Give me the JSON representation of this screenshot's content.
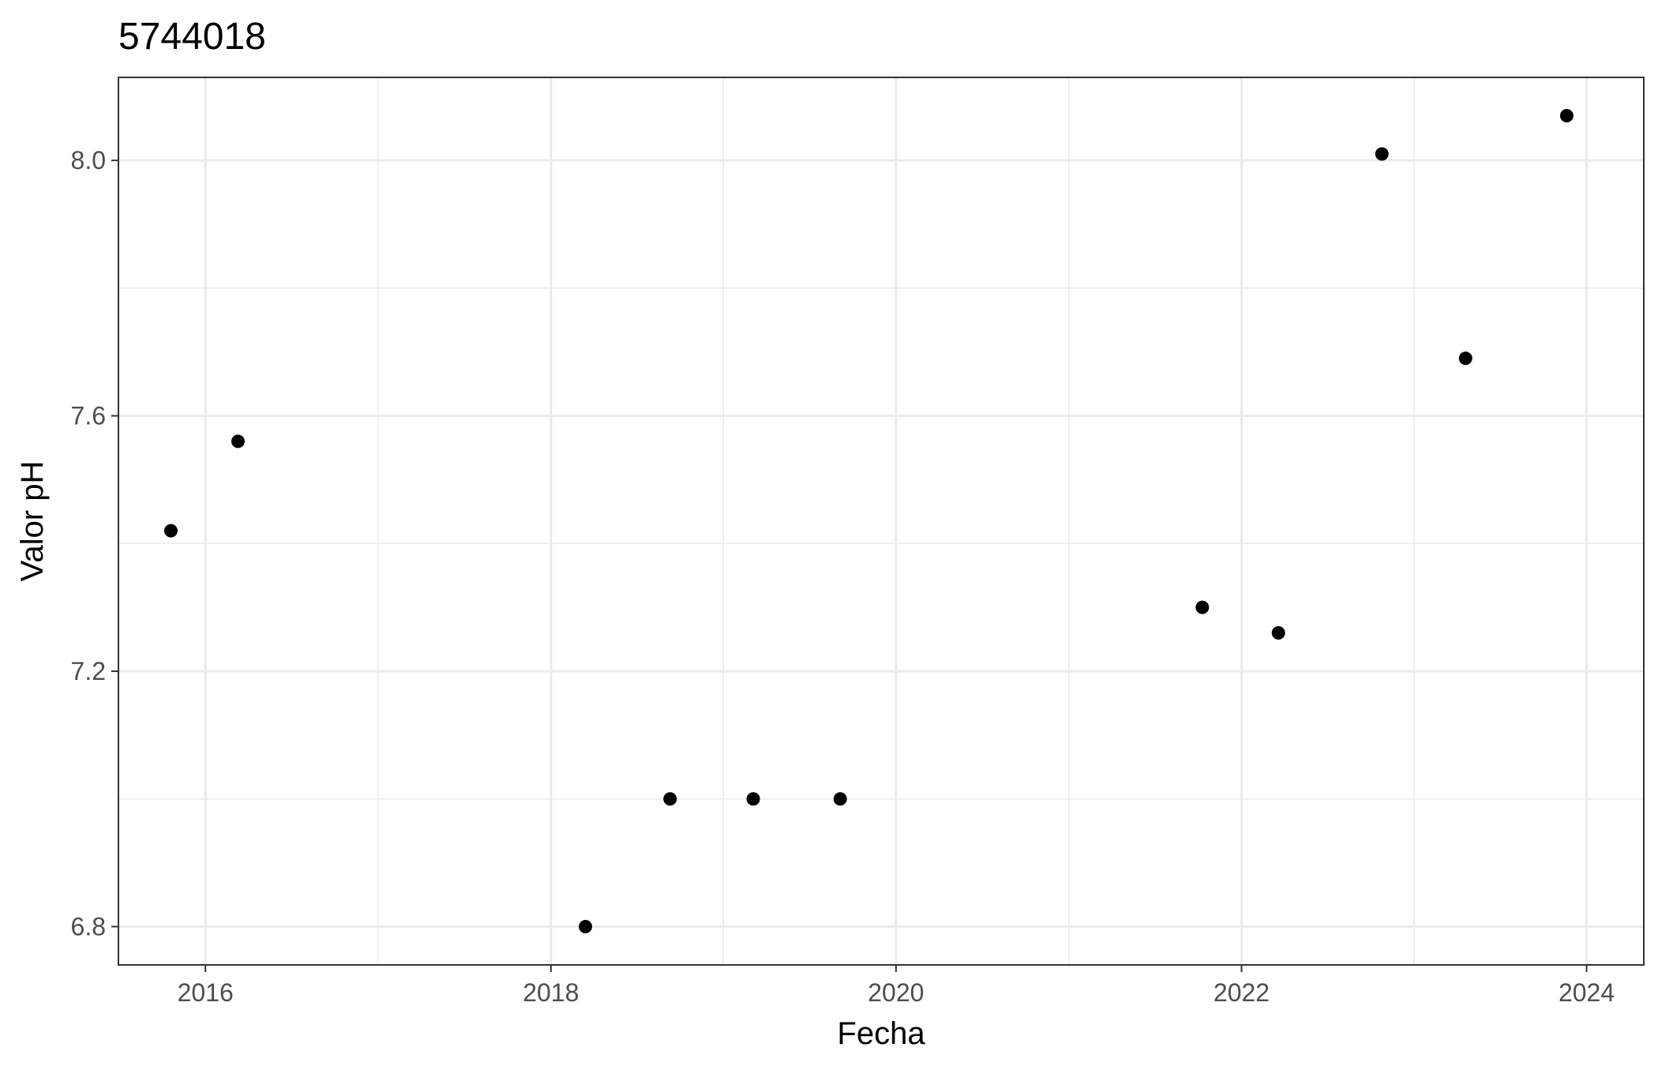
{
  "chart_data": {
    "type": "scatter",
    "title": "5744018",
    "xlabel": "Fecha",
    "ylabel": "Valor pH",
    "x_type": "date",
    "xlim": [
      "2015-07-01",
      "2024-05-01"
    ],
    "ylim": [
      6.74,
      8.13
    ],
    "x_ticks": [
      "2016-01-01",
      "2018-01-01",
      "2020-01-01",
      "2022-01-01",
      "2024-01-01"
    ],
    "x_tick_labels": [
      "2016",
      "2018",
      "2020",
      "2022",
      "2024"
    ],
    "y_ticks": [
      6.8,
      7.2,
      7.6,
      8.0
    ],
    "y_tick_labels": [
      "6.8",
      "7.2",
      "7.6",
      "8.0"
    ],
    "grid": true,
    "legend": "none",
    "point_color": "#000000",
    "points": [
      {
        "x": "2015-10-20",
        "y": 7.42
      },
      {
        "x": "2016-03-10",
        "y": 7.56
      },
      {
        "x": "2018-03-15",
        "y": 6.8
      },
      {
        "x": "2018-09-10",
        "y": 7.0
      },
      {
        "x": "2019-03-05",
        "y": 7.0
      },
      {
        "x": "2019-09-05",
        "y": 7.0
      },
      {
        "x": "2021-10-10",
        "y": 7.3
      },
      {
        "x": "2022-03-20",
        "y": 7.26
      },
      {
        "x": "2022-10-25",
        "y": 8.01
      },
      {
        "x": "2023-04-20",
        "y": 7.69
      },
      {
        "x": "2023-11-20",
        "y": 8.07
      }
    ]
  }
}
